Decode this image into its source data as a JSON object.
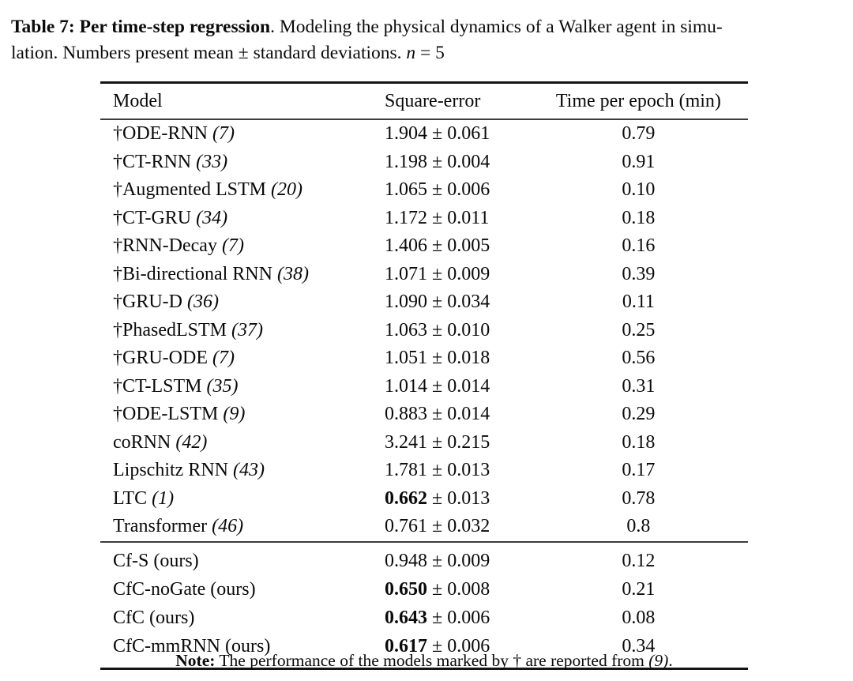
{
  "caption": {
    "line1_bold": "Table 7: Per time-step regression",
    "line1_rest": ". Modeling the physical dynamics of a Walker agent in simu-",
    "line2_text": "lation. Numbers present mean ± standard deviations. ",
    "line2_var": "n",
    "line2_eq": " = 5"
  },
  "table": {
    "headers": {
      "model": "Model",
      "square_error": "Square-error",
      "time_per_epoch": "Time per epoch (min)"
    },
    "rows": [
      {
        "model": "†ODE-RNN",
        "cite": "(7)",
        "mean": "1.904",
        "std": "± 0.061",
        "bold": false,
        "time": "0.79"
      },
      {
        "model": "†CT-RNN",
        "cite": "(33)",
        "mean": "1.198",
        "std": "± 0.004",
        "bold": false,
        "time": "0.91"
      },
      {
        "model": "†Augmented LSTM",
        "cite": "(20)",
        "mean": "1.065",
        "std": "± 0.006",
        "bold": false,
        "time": "0.10"
      },
      {
        "model": "†CT-GRU",
        "cite": "(34)",
        "mean": "1.172",
        "std": "± 0.011",
        "bold": false,
        "time": "0.18"
      },
      {
        "model": "†RNN-Decay",
        "cite": "(7)",
        "mean": "1.406",
        "std": "± 0.005",
        "bold": false,
        "time": "0.16"
      },
      {
        "model": "†Bi-directional RNN",
        "cite": "(38)",
        "mean": "1.071",
        "std": "± 0.009",
        "bold": false,
        "time": "0.39"
      },
      {
        "model": "†GRU-D",
        "cite": "(36)",
        "mean": "1.090",
        "std": "± 0.034",
        "bold": false,
        "time": "0.11"
      },
      {
        "model": "†PhasedLSTM",
        "cite": "(37)",
        "mean": "1.063",
        "std": "± 0.010",
        "bold": false,
        "time": "0.25"
      },
      {
        "model": "†GRU-ODE",
        "cite": "(7)",
        "mean": "1.051",
        "std": "± 0.018",
        "bold": false,
        "time": "0.56"
      },
      {
        "model": "†CT-LSTM",
        "cite": "(35)",
        "mean": "1.014",
        "std": "± 0.014",
        "bold": false,
        "time": "0.31"
      },
      {
        "model": "†ODE-LSTM",
        "cite": "(9)",
        "mean": "0.883",
        "std": "± 0.014",
        "bold": false,
        "time": "0.29"
      },
      {
        "model": "coRNN",
        "cite": "(42)",
        "mean": "3.241",
        "std": "± 0.215",
        "bold": false,
        "time": "0.18"
      },
      {
        "model": "Lipschitz RNN",
        "cite": "(43)",
        "mean": "1.781",
        "std": "± 0.013",
        "bold": false,
        "time": "0.17"
      },
      {
        "model": "LTC",
        "cite": "(1)",
        "mean": "0.662",
        "std": "± 0.013",
        "bold": true,
        "time": "0.78"
      },
      {
        "model": "Transformer",
        "cite": "(46)",
        "mean": "0.761",
        "std": "± 0.032",
        "bold": false,
        "time": "0.8"
      }
    ],
    "rows_ours": [
      {
        "model": "Cf-S (ours)",
        "cite": "",
        "mean": "0.948",
        "std": "± 0.009",
        "bold": false,
        "time": "0.12"
      },
      {
        "model": "CfC-noGate (ours)",
        "cite": "",
        "mean": "0.650",
        "std": "± 0.008",
        "bold": true,
        "time": "0.21"
      },
      {
        "model": "CfC (ours)",
        "cite": "",
        "mean": "0.643",
        "std": "± 0.006",
        "bold": true,
        "time": "0.08"
      },
      {
        "model": "CfC-mmRNN (ours)",
        "cite": "",
        "mean": "0.617",
        "std": "± 0.006",
        "bold": true,
        "time": "0.34"
      }
    ]
  },
  "note": {
    "label": "Note:",
    "text": " The performance of the models marked by † are reported from ",
    "cite": "(9)",
    "end": "."
  }
}
